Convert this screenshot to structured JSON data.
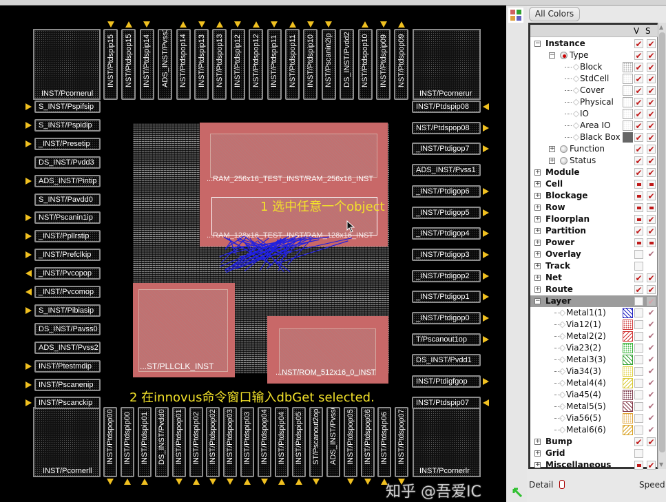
{
  "panel": {
    "all_colors_label": "All Colors",
    "col_v": "V",
    "col_s": "S",
    "detail_label": "Detail",
    "speed_label": "Speed",
    "tree": [
      {
        "label": "Instance",
        "lvl": 0,
        "bold": true,
        "exp": "-",
        "v": "check",
        "s": "check"
      },
      {
        "label": "Type",
        "lvl": 1,
        "exp": "-",
        "icon": "radio-on",
        "v": "check",
        "s": "check"
      },
      {
        "label": "Block",
        "lvl": 2,
        "icon": "diamond",
        "swatch": "block",
        "v": "check",
        "s": "check"
      },
      {
        "label": "StdCell",
        "lvl": 2,
        "icon": "diamond",
        "swatch": "light",
        "v": "check",
        "s": "check"
      },
      {
        "label": "Cover",
        "lvl": 2,
        "icon": "diamond",
        "swatch": "light",
        "v": "check",
        "s": "check"
      },
      {
        "label": "Physical",
        "lvl": 2,
        "icon": "diamond",
        "swatch": "light",
        "v": "check",
        "s": "check"
      },
      {
        "label": "IO",
        "lvl": 2,
        "icon": "diamond",
        "swatch": "light",
        "v": "check",
        "s": "check"
      },
      {
        "label": "Area IO",
        "lvl": 2,
        "icon": "diamond",
        "swatch": "light",
        "v": "check",
        "s": "check"
      },
      {
        "label": "Black Box",
        "lvl": 2,
        "icon": "diamond",
        "swatch": "blackbox",
        "v": "check",
        "s": "check"
      },
      {
        "label": "Function",
        "lvl": 1,
        "exp": "+",
        "icon": "radio-off",
        "v": "check",
        "s": "check"
      },
      {
        "label": "Status",
        "lvl": 1,
        "exp": "+",
        "icon": "radio-off",
        "v": "check",
        "s": "check"
      },
      {
        "label": "Module",
        "lvl": 0,
        "bold": true,
        "exp": "+",
        "v": "check",
        "s": "check"
      },
      {
        "label": "Cell",
        "lvl": 0,
        "bold": true,
        "exp": "+",
        "v": "partial",
        "s": "partial"
      },
      {
        "label": "Blockage",
        "lvl": 0,
        "bold": true,
        "exp": "+",
        "v": "partial",
        "s": "check"
      },
      {
        "label": "Row",
        "lvl": 0,
        "bold": true,
        "exp": "+",
        "v": "partial",
        "s": "partial"
      },
      {
        "label": "Floorplan",
        "lvl": 0,
        "bold": true,
        "exp": "+",
        "v": "partial",
        "s": "check"
      },
      {
        "label": "Partition",
        "lvl": 0,
        "bold": true,
        "exp": "+",
        "v": "check",
        "s": "check"
      },
      {
        "label": "Power",
        "lvl": 0,
        "bold": true,
        "exp": "+",
        "v": "partial",
        "s": "partial"
      },
      {
        "label": "Overlay",
        "lvl": 0,
        "bold": true,
        "exp": "+",
        "v": "empty",
        "s": "light"
      },
      {
        "label": "Track",
        "lvl": 0,
        "bold": true,
        "exp": "+",
        "v": "empty",
        "s": "none"
      },
      {
        "label": "Net",
        "lvl": 0,
        "bold": true,
        "exp": "+",
        "v": "check",
        "s": "check"
      },
      {
        "label": "Route",
        "lvl": 0,
        "bold": true,
        "exp": "+",
        "v": "check",
        "s": "check"
      },
      {
        "label": "Layer",
        "lvl": 0,
        "bold": true,
        "exp": "-",
        "v": "empty",
        "s": "grey",
        "highlight": true
      },
      {
        "label": "Metal1(1)",
        "lvl": 3,
        "icon": "diamond",
        "swatch": "m1",
        "v": "empty",
        "s": "light"
      },
      {
        "label": "Via12(1)",
        "lvl": 3,
        "icon": "diamond",
        "swatch": "v12",
        "v": "empty",
        "s": "light"
      },
      {
        "label": "Metal2(2)",
        "lvl": 3,
        "icon": "diamond",
        "swatch": "m2",
        "v": "empty",
        "s": "light"
      },
      {
        "label": "Via23(2)",
        "lvl": 3,
        "icon": "diamond",
        "swatch": "v23",
        "v": "empty",
        "s": "light"
      },
      {
        "label": "Metal3(3)",
        "lvl": 3,
        "icon": "diamond",
        "swatch": "m3",
        "v": "empty",
        "s": "light"
      },
      {
        "label": "Via34(3)",
        "lvl": 3,
        "icon": "diamond",
        "swatch": "v34",
        "v": "empty",
        "s": "light"
      },
      {
        "label": "Metal4(4)",
        "lvl": 3,
        "icon": "diamond",
        "swatch": "m4",
        "v": "empty",
        "s": "light"
      },
      {
        "label": "Via45(4)",
        "lvl": 3,
        "icon": "diamond",
        "swatch": "v45",
        "v": "empty",
        "s": "light"
      },
      {
        "label": "Metal5(5)",
        "lvl": 3,
        "icon": "diamond",
        "swatch": "m5",
        "v": "empty",
        "s": "light"
      },
      {
        "label": "Via56(5)",
        "lvl": 3,
        "icon": "diamond",
        "swatch": "v56",
        "v": "empty",
        "s": "light"
      },
      {
        "label": "Metal6(6)",
        "lvl": 3,
        "icon": "diamond",
        "swatch": "m6",
        "v": "empty",
        "s": "light"
      },
      {
        "label": "Bump",
        "lvl": 0,
        "bold": true,
        "exp": "+",
        "v": "check",
        "s": "check"
      },
      {
        "label": "Grid",
        "lvl": 0,
        "bold": true,
        "exp": "+",
        "v": "empty",
        "s": "none"
      },
      {
        "label": "Miscellaneous",
        "lvl": 0,
        "bold": true,
        "exp": "+",
        "v": "partial",
        "s": "check"
      }
    ],
    "swatch_colors": {
      "block": "#a8a8a8",
      "light": "#f0f0f0",
      "blackbox": "#666666",
      "m1": "#2020c0",
      "v12": "#d04040",
      "m2": "#d03030",
      "v23": "#30b030",
      "m3": "#30a030",
      "v34": "#e0d040",
      "m4": "#d8c830",
      "v45": "#804050",
      "m5": "#803040",
      "v56": "#e0a030",
      "m6": "#d8a020"
    }
  },
  "layout": {
    "corners": {
      "ul": "INST/Pcornerul",
      "ur": "INST/Pcornerur",
      "ll": "INST/Pcornerll",
      "lr": "INST/Pcornerlr"
    },
    "top_pads": [
      {
        "name": "INST/Ptdspip15",
        "dir": "in"
      },
      {
        "name": "NST/Ptdspop15",
        "dir": "out"
      },
      {
        "name": "INST/Ptdspip14",
        "dir": "in"
      },
      {
        "name": "ADS_INST/Pvss3",
        "dir": "none"
      },
      {
        "name": "NST/Ptdspop14",
        "dir": "out"
      },
      {
        "name": "INST/Ptdspip13",
        "dir": "in"
      },
      {
        "name": "NST/Ptdspop13",
        "dir": "out"
      },
      {
        "name": "INST/Ptdspip12",
        "dir": "in"
      },
      {
        "name": "NST/Ptdspop12",
        "dir": "out"
      },
      {
        "name": "INST/Ptdspip11",
        "dir": "in"
      },
      {
        "name": "NST/Ptdspop11",
        "dir": "out"
      },
      {
        "name": "INST/Ptdspip10",
        "dir": "in"
      },
      {
        "name": "NST/Pscanin2ip",
        "dir": "in"
      },
      {
        "name": "DS_INST/Pvdd2",
        "dir": "none"
      },
      {
        "name": "NST/Ptdspop10",
        "dir": "out"
      },
      {
        "name": "INST/Ptdspip09",
        "dir": "in"
      },
      {
        "name": "NST/Ptdspop09",
        "dir": "out"
      }
    ],
    "bottom_pads": [
      {
        "name": "INST/Ptdspop00",
        "dir": "out"
      },
      {
        "name": "INST/Ptdspip00",
        "dir": "in"
      },
      {
        "name": "INST/Ptdspip01",
        "dir": "in"
      },
      {
        "name": "DS_INST/Pvdd0",
        "dir": "none"
      },
      {
        "name": "INST/Ptdspop01",
        "dir": "out"
      },
      {
        "name": "INST/Ptdspip02",
        "dir": "in"
      },
      {
        "name": "INST/Ptdspop02",
        "dir": "out"
      },
      {
        "name": "INST/Ptdspop03",
        "dir": "out"
      },
      {
        "name": "INST/Ptdspip03",
        "dir": "in"
      },
      {
        "name": "INST/Ptdspop04",
        "dir": "out"
      },
      {
        "name": "INST/Ptdspip04",
        "dir": "in"
      },
      {
        "name": "INST/Ptdspip05",
        "dir": "in"
      },
      {
        "name": "ST/Pscanout2op",
        "dir": "out"
      },
      {
        "name": "ADS_INST/Pvss0",
        "dir": "none"
      },
      {
        "name": "INST/Ptdspop05",
        "dir": "out"
      },
      {
        "name": "INST/Ptdspop06",
        "dir": "out"
      },
      {
        "name": "INST/Ptdspip06",
        "dir": "in"
      },
      {
        "name": "INST/Ptdspop07",
        "dir": "out"
      }
    ],
    "left_pads": [
      {
        "name": "S_INST/Pspifsip",
        "dir": "in"
      },
      {
        "name": "S_INST/Pspidip",
        "dir": "in"
      },
      {
        "name": "_INST/Presetip",
        "dir": "in"
      },
      {
        "name": "DS_INST/Pvdd3",
        "dir": "none"
      },
      {
        "name": "ADS_INST/Pintip",
        "dir": "in"
      },
      {
        "name": "S_INST/Pavdd0",
        "dir": "none"
      },
      {
        "name": "NST/Pscanin1ip",
        "dir": "in"
      },
      {
        "name": "_INST/Ppllrstip",
        "dir": "in"
      },
      {
        "name": "_INST/Prefclkip",
        "dir": "in"
      },
      {
        "name": "_INST/Pvcopop",
        "dir": "out"
      },
      {
        "name": "_INST/Pvcomop",
        "dir": "out"
      },
      {
        "name": "S_INST/Pibiasip",
        "dir": "in"
      },
      {
        "name": "DS_INST/Pavss0",
        "dir": "none"
      },
      {
        "name": "ADS_INST/Pvss2",
        "dir": "none"
      },
      {
        "name": "INST/Ptestmdip",
        "dir": "in"
      },
      {
        "name": "INST/Pscanenip",
        "dir": "in"
      },
      {
        "name": "INST/Pscanckip",
        "dir": "in"
      }
    ],
    "right_pads": [
      {
        "name": "INST/Ptdspip08",
        "dir": "in"
      },
      {
        "name": "NST/Ptdspop08",
        "dir": "out"
      },
      {
        "name": "_INST/Ptdigop7",
        "dir": "out"
      },
      {
        "name": "ADS_INST/Pvss1",
        "dir": "none"
      },
      {
        "name": "_INST/Ptdigop6",
        "dir": "out"
      },
      {
        "name": "_INST/Ptdigop5",
        "dir": "out"
      },
      {
        "name": "_INST/Ptdigop4",
        "dir": "out"
      },
      {
        "name": "_INST/Ptdigop3",
        "dir": "out"
      },
      {
        "name": "_INST/Ptdigop2",
        "dir": "out"
      },
      {
        "name": "_INST/Ptdigop1",
        "dir": "out"
      },
      {
        "name": "_INST/Ptdigop0",
        "dir": "out"
      },
      {
        "name": "T/Pscanout1op",
        "dir": "out"
      },
      {
        "name": "DS_INST/Pvdd1",
        "dir": "none"
      },
      {
        "name": "INST/Ptdigfgop",
        "dir": "out"
      },
      {
        "name": "INST/Ptdspip07",
        "dir": "in"
      }
    ],
    "macros": {
      "ram256": "...RAM_256x16_TEST_INST/RAM_256x16_INST",
      "ram128": "...RAM_128x16_TEST_INST/RAM_128x16_INST",
      "pll": "...ST/PLLCLK_INST",
      "rom": "...NST/ROM_512x16_0_INST"
    },
    "colors": {
      "macro": "#c86868",
      "pad_arrow": "#f0c020",
      "flyline": "#2020e0",
      "annotation": "#f3e22a"
    }
  },
  "annotations": {
    "step1": "1 选中任意一个object",
    "step2": "2 在innovus命令窗口输入dbGet selected."
  },
  "watermark": "知乎 @吾爱IC"
}
